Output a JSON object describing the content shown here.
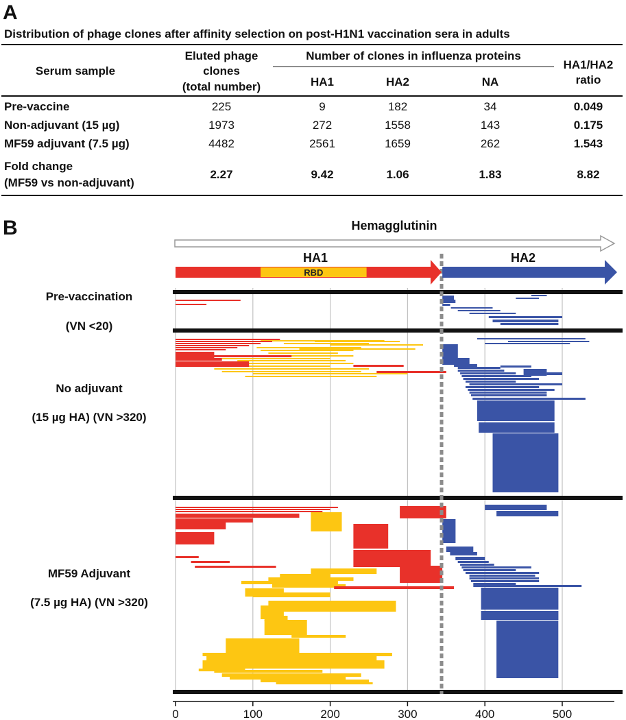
{
  "panel_a": {
    "letter": "A",
    "title": "Distribution of phage clones after affinity selection on post-H1N1 vaccination sera in adults",
    "headers": {
      "serum": "Serum sample",
      "eluted_line1": "Eluted phage",
      "eluted_line2": "clones",
      "eluted_line3": "(total number)",
      "number_group": "Number of clones in influenza proteins",
      "ha1": "HA1",
      "ha2": "HA2",
      "na": "NA",
      "ratio_line1": "HA1/HA2",
      "ratio_line2": "ratio"
    },
    "rows": [
      {
        "label": "Pre-vaccine",
        "eluted": "225",
        "ha1": "9",
        "ha2": "182",
        "na": "34",
        "ratio": "0.049"
      },
      {
        "label": "Non-adjuvant (15 µg)",
        "eluted": "1973",
        "ha1": "272",
        "ha2": "1558",
        "na": "143",
        "ratio": "0.175"
      },
      {
        "label": "MF59 adjuvant (7.5 µg)",
        "eluted": "4482",
        "ha1": "2561",
        "ha2": "1659",
        "na": "262",
        "ratio": "1.543"
      }
    ],
    "fold": {
      "label_line1": "Fold change",
      "label_line2": "(MF59 vs non-adjuvant)",
      "eluted": "2.27",
      "ha1": "9.42",
      "ha2": "1.06",
      "na": "1.83",
      "ratio": "8.82"
    }
  },
  "panel_b": {
    "letter": "B",
    "protein_label": "Hemagglutinin",
    "domain_ha1": "HA1",
    "domain_ha2": "HA2",
    "rbd_label": "RBD",
    "groups": [
      {
        "line1": "Pre-vaccination",
        "line2": "(VN <20)"
      },
      {
        "line1": "No adjuvant",
        "line2": "(15 µg HA) (VN >320)"
      },
      {
        "line1": "MF59 Adjuvant",
        "line2": "(7.5 µg HA) (VN >320)"
      }
    ],
    "colors": {
      "ha1": "#e8312a",
      "rbd": "#fdc612",
      "ha2": "#3a54a6",
      "arrow_outline": "#999999"
    },
    "chart_data": {
      "type": "bar",
      "x_ticks": [
        0,
        100,
        200,
        300,
        400,
        500
      ],
      "xlim": [
        0,
        566
      ],
      "ha1_range": [
        1,
        344
      ],
      "ha2_range": [
        345,
        566
      ],
      "rbd_range": [
        110,
        247
      ],
      "ha1_ha2_boundary": 344,
      "grid": true
    }
  }
}
